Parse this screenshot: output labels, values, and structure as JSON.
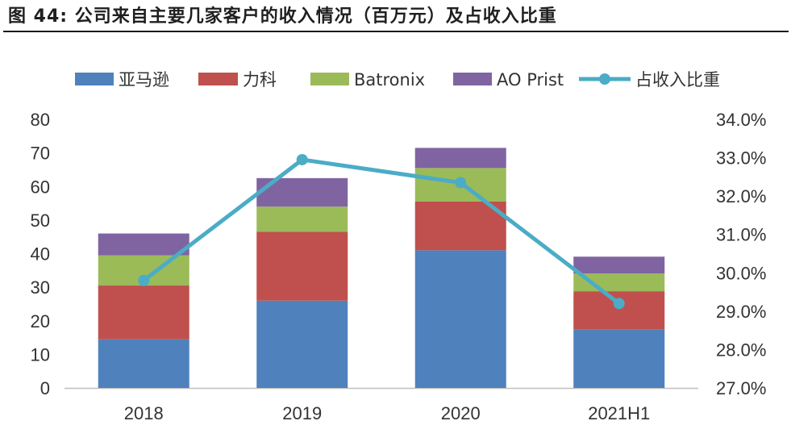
{
  "figure_title": "图 44: 公司来自主要几家客户的收入情况（百万元）及占收入比重",
  "chart_data": {
    "type": "bar",
    "stacked": true,
    "categories": [
      "2018",
      "2019",
      "2020",
      "2021H1"
    ],
    "series": [
      {
        "name": "亚马逊",
        "color": "#4F81BD",
        "values": [
          14.5,
          26,
          41,
          17.5
        ]
      },
      {
        "name": "力科",
        "color": "#C0504D",
        "values": [
          16,
          20.5,
          14.5,
          11.3
        ]
      },
      {
        "name": "Batronix",
        "color": "#9BBB59",
        "values": [
          9,
          7.5,
          10,
          5.3
        ]
      },
      {
        "name": "AO Prist",
        "color": "#8064A2",
        "values": [
          6.5,
          8.5,
          6,
          5
        ]
      }
    ],
    "line_series": {
      "name": "占收入比重",
      "color": "#4BACC6",
      "axis": "right",
      "values": [
        29.8,
        32.95,
        32.35,
        29.2
      ]
    },
    "y_left": {
      "min": 0,
      "max": 80,
      "ticks": [
        0,
        10,
        20,
        30,
        40,
        50,
        60,
        70,
        80
      ]
    },
    "y_right": {
      "min": 27,
      "max": 34,
      "ticks": [
        27,
        28,
        29,
        30,
        31,
        32,
        33,
        34
      ],
      "tick_labels": [
        "27.0%",
        "28.0%",
        "29.0%",
        "30.0%",
        "31.0%",
        "32.0%",
        "33.0%",
        "34.0%"
      ]
    },
    "grid": false,
    "legend_position": "top"
  }
}
